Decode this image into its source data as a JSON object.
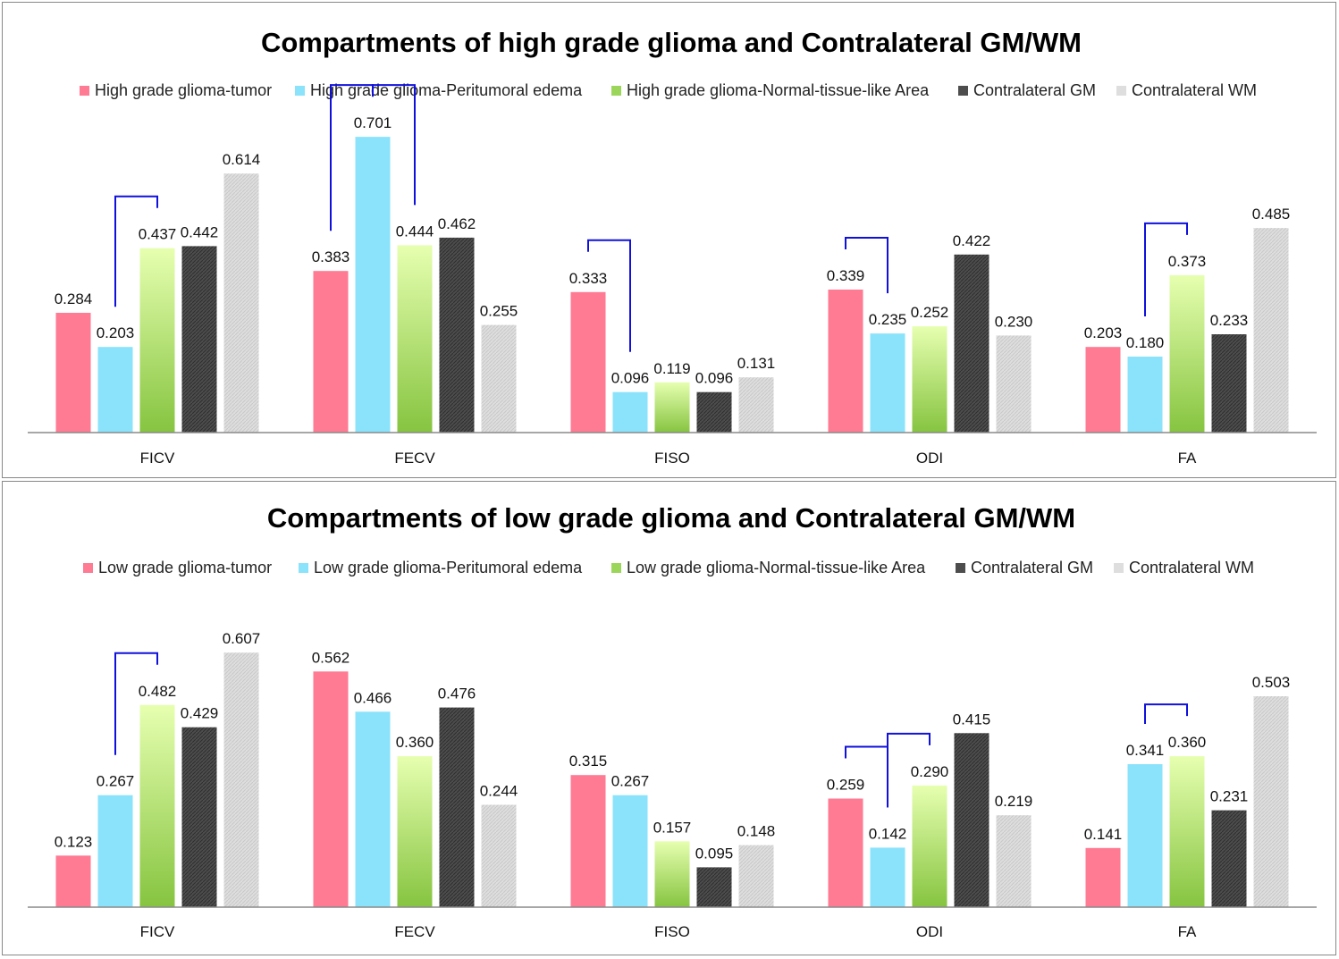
{
  "colors": {
    "tumor": "#ff7a93",
    "edema": "#8ae3fb",
    "normal": "#a8dd6e",
    "gm": "#4d4d4d",
    "wm": "#dedede",
    "bracket": "#1010dd"
  },
  "chart_data": [
    {
      "type": "bar",
      "title": "Compartments of high grade glioma and Contralateral GM/WM",
      "categories": [
        "FICV",
        "FECV",
        "FISO",
        "ODI",
        "FA"
      ],
      "series": [
        {
          "name": "High grade glioma-tumor",
          "key": "tumor",
          "values": [
            0.284,
            0.383,
            0.333,
            0.339,
            0.203
          ],
          "labels": [
            "0.284",
            "0.383",
            "0.333",
            "0.339",
            "0.203"
          ]
        },
        {
          "name": "High grade glioma-Peritumoral edema",
          "key": "edema",
          "values": [
            0.203,
            0.701,
            0.096,
            0.235,
            0.18
          ],
          "labels": [
            "0.203",
            "0.701",
            "0.096",
            "0.235",
            "0.180"
          ]
        },
        {
          "name": "High grade glioma-Normal-tissue-like Area",
          "key": "normal",
          "values": [
            0.437,
            0.444,
            0.119,
            0.252,
            0.373
          ],
          "labels": [
            "0.437",
            "0.444",
            "0.119",
            "0.252",
            "0.373"
          ]
        },
        {
          "name": "Contralateral GM",
          "key": "gm",
          "values": [
            0.442,
            0.462,
            0.096,
            0.422,
            0.233
          ],
          "labels": [
            "0.442",
            "0.462",
            "0.096",
            "0.422",
            "0.233"
          ]
        },
        {
          "name": "Contralateral WM",
          "key": "wm",
          "values": [
            0.614,
            0.255,
            0.131,
            0.23,
            0.485
          ],
          "labels": [
            "0.614",
            "0.255",
            "0.131",
            "0.230",
            "0.485"
          ]
        }
      ],
      "ylim": [
        0,
        0.75
      ],
      "significance_brackets": [
        {
          "category": 0,
          "from": 1,
          "to": 2
        },
        {
          "category": 1,
          "from": 0,
          "to": 1
        },
        {
          "category": 1,
          "from": 1,
          "to": 2
        },
        {
          "category": 2,
          "from": 0,
          "to": 1
        },
        {
          "category": 3,
          "from": 0,
          "to": 1
        },
        {
          "category": 4,
          "from": 1,
          "to": 2
        }
      ]
    },
    {
      "type": "bar",
      "title": "Compartments of low grade glioma and Contralateral GM/WM",
      "categories": [
        "FICV",
        "FECV",
        "FISO",
        "ODI",
        "FA"
      ],
      "series": [
        {
          "name": "Low grade glioma-tumor",
          "key": "tumor",
          "values": [
            0.123,
            0.562,
            0.315,
            0.259,
            0.141
          ],
          "labels": [
            "0.123",
            "0.562",
            "0.315",
            "0.259",
            "0.141"
          ]
        },
        {
          "name": "Low grade glioma-Peritumoral edema",
          "key": "edema",
          "values": [
            0.267,
            0.466,
            0.267,
            0.142,
            0.341
          ],
          "labels": [
            "0.267",
            "0.466",
            "0.267",
            "0.142",
            "0.341"
          ]
        },
        {
          "name": "Low grade glioma-Normal-tissue-like Area",
          "key": "normal",
          "values": [
            0.482,
            0.36,
            0.157,
            0.29,
            0.36
          ],
          "labels": [
            "0.482",
            "0.360",
            "0.157",
            "0.290",
            "0.360"
          ]
        },
        {
          "name": "Contralateral GM",
          "key": "gm",
          "values": [
            0.429,
            0.476,
            0.095,
            0.415,
            0.231
          ],
          "labels": [
            "0.429",
            "0.476",
            "0.095",
            "0.415",
            "0.231"
          ]
        },
        {
          "name": "Contralateral WM",
          "key": "wm",
          "values": [
            0.607,
            0.244,
            0.148,
            0.219,
            0.503
          ],
          "labels": [
            "0.607",
            "0.244",
            "0.148",
            "0.219",
            "0.503"
          ]
        }
      ],
      "ylim": [
        0,
        0.65
      ],
      "significance_brackets": [
        {
          "category": 0,
          "from": 1,
          "to": 2
        },
        {
          "category": 3,
          "from": 0,
          "to": 1
        },
        {
          "category": 3,
          "from": 1,
          "to": 2
        },
        {
          "category": 4,
          "from": 1,
          "to": 2
        }
      ]
    }
  ]
}
